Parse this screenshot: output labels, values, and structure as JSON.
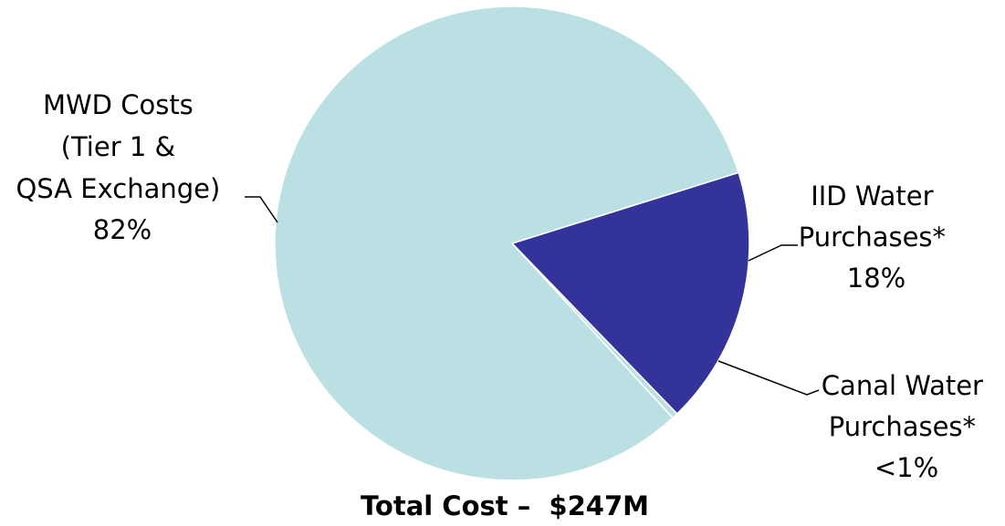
{
  "chart_data": {
    "type": "pie",
    "caption": "Total Cost –  $247M",
    "slices": [
      {
        "label_lines": [
          "MWD Costs",
          "(Tier 1 &",
          "QSA Exchange)"
        ],
        "percent_label": "82%",
        "value": 82,
        "color": "#bbe0e3"
      },
      {
        "label_lines": [
          "IID Water",
          "Purchases*"
        ],
        "percent_label": "18%",
        "value": 17.6,
        "color": "#333399"
      },
      {
        "label_lines": [
          "Canal Water",
          "Purchases*"
        ],
        "percent_label": "<1%",
        "value": 0.4,
        "color": "#bbe0e3"
      }
    ]
  }
}
